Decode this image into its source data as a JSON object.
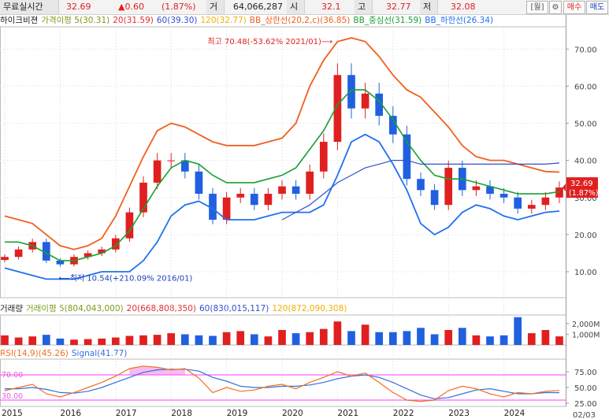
{
  "header": {
    "title": "무료실시간",
    "price": "32.69",
    "change": "▲0.60",
    "change_pct": "(1.87%)",
    "volume_label": "거",
    "volume": "64,066,287",
    "open_label": "시",
    "open": "32.1",
    "high_label": "고",
    "high": "32.77",
    "low_label": "저",
    "low": "32.08",
    "week_button": "[월]",
    "settings_icon": "gear-icon",
    "buy_button": "매수",
    "sell_button": "매도"
  },
  "colors": {
    "up": "#e02020",
    "down": "#2060e0",
    "ma5": "#7a9a1a",
    "ma20": "#e03030",
    "ma60": "#3050d0",
    "ma120": "#f0b000",
    "bb_upper": "#f06020",
    "bb_middle": "#18a030",
    "bb_lower": "#2070f0",
    "rsi": "#f07020",
    "signal": "#3070e0",
    "rsi_band": "#ff60ff"
  },
  "price_panel": {
    "legend": [
      {
        "text": "하이크비젼",
        "color": "#222222"
      },
      {
        "text": "가격이평 5(30.31)",
        "color": "#7a9a1a"
      },
      {
        "text": "20(31.59)",
        "color": "#e03030"
      },
      {
        "text": "60(39.30)",
        "color": "#3050d0"
      },
      {
        "text": "120(32.77)",
        "color": "#f0b000"
      },
      {
        "text": "BB_상한선(20,2,c)(36.85)",
        "color": "#f06020"
      },
      {
        "text": "BB_중심선(31.59)",
        "color": "#18a030"
      },
      {
        "text": "BB_하한선(26.34)",
        "color": "#2070f0"
      }
    ],
    "high_annotation": "최고 70.48(-53.62% 2021/01)⟶",
    "low_annotation": "⟵최저 10.54(+210.09% 2016/01)",
    "current_tag": {
      "price": "32.69",
      "pct": "(1.87%)"
    }
  },
  "volume_panel": {
    "legend": [
      {
        "text": "거래량",
        "color": "#222222"
      },
      {
        "text": "거래이평 5(804,043,000)",
        "color": "#7a9a1a"
      },
      {
        "text": "20(668,808,350)",
        "color": "#e03030"
      },
      {
        "text": "60(830,015,117)",
        "color": "#3050d0"
      },
      {
        "text": "120(872,090,308)",
        "color": "#f0b000"
      }
    ]
  },
  "rsi_panel": {
    "legend": [
      {
        "text": "RSI(14,9)(45.26)",
        "color": "#f07020"
      },
      {
        "text": "Signal(41.77)",
        "color": "#3070e0"
      }
    ],
    "upper_label": "70.00",
    "lower_label": "30.00"
  },
  "x_axis": {
    "labels": [
      "2015",
      "2016",
      "2017",
      "2018",
      "2019",
      "2020",
      "2021",
      "2022",
      "2023",
      "2024"
    ],
    "last_date": "02/03"
  },
  "chart_data": [
    {
      "type": "candlestick",
      "frequency": "monthly",
      "y_axis": {
        "ticks": [
          "10.00",
          "20.00",
          "30.00",
          "40.00",
          "50.00",
          "60.00",
          "70.00"
        ],
        "range": [
          3,
          76
        ]
      },
      "x": [
        "2015-01",
        "2015-04",
        "2015-07",
        "2015-10",
        "2016-01",
        "2016-04",
        "2016-07",
        "2016-10",
        "2017-01",
        "2017-04",
        "2017-07",
        "2017-10",
        "2018-01",
        "2018-04",
        "2018-07",
        "2018-10",
        "2019-01",
        "2019-04",
        "2019-07",
        "2019-10",
        "2020-01",
        "2020-04",
        "2020-07",
        "2020-10",
        "2021-01",
        "2021-04",
        "2021-07",
        "2021-10",
        "2022-01",
        "2022-04",
        "2022-07",
        "2022-10",
        "2023-01",
        "2023-04",
        "2023-07",
        "2023-10",
        "2024-01",
        "2024-04",
        "2024-07",
        "2024-10",
        "2025-01"
      ],
      "close": [
        14,
        16,
        18,
        13,
        12,
        14,
        15,
        16,
        19,
        26,
        34,
        40,
        40,
        37,
        31,
        24,
        30,
        31,
        28,
        31,
        33,
        31,
        37,
        45,
        63,
        54,
        58,
        52,
        47,
        35,
        32,
        28,
        38,
        32,
        33,
        31,
        30,
        27,
        28,
        30,
        32.69
      ],
      "bb_upper": [
        25,
        24,
        23,
        20,
        17,
        16,
        17,
        19,
        25,
        33,
        41,
        48,
        50,
        49,
        47,
        45,
        44,
        44,
        44,
        45,
        46,
        50,
        60,
        67,
        72,
        73,
        72,
        68,
        63,
        59,
        57,
        53,
        49,
        44,
        41,
        40,
        40,
        39,
        38,
        37,
        36.85
      ],
      "bb_middle": [
        18,
        18,
        17,
        15,
        13,
        13,
        14,
        15,
        17,
        21,
        27,
        33,
        38,
        40,
        39,
        36,
        34,
        34,
        34,
        35,
        36,
        38,
        43,
        48,
        55,
        59,
        59,
        56,
        51,
        45,
        40,
        36,
        35,
        35,
        34,
        33,
        32,
        31,
        31,
        31,
        31.59
      ],
      "bb_lower": [
        11,
        10,
        9,
        8,
        8,
        8,
        9,
        10,
        10,
        10,
        13,
        18,
        25,
        28,
        29,
        27,
        24,
        24,
        24,
        25,
        26,
        26,
        26,
        28,
        36,
        45,
        47,
        45,
        39,
        32,
        23,
        20,
        22,
        26,
        28,
        27,
        25,
        24,
        25,
        26,
        26.34
      ],
      "ma60": [
        null,
        null,
        null,
        null,
        null,
        null,
        null,
        null,
        null,
        null,
        null,
        null,
        null,
        null,
        null,
        null,
        null,
        null,
        null,
        null,
        24,
        26,
        28,
        31,
        34,
        36,
        38,
        39,
        40,
        40,
        39,
        39,
        39,
        39,
        39,
        39,
        39,
        39,
        39,
        39,
        39.3
      ],
      "annotations": [
        {
          "label": "최고",
          "value": 70.48,
          "date": "2021/01"
        },
        {
          "label": "최저",
          "value": 10.54,
          "date": "2016/01"
        }
      ]
    },
    {
      "type": "bar",
      "title": "거래량",
      "y_axis": {
        "ticks": [
          "1,000M",
          "2,000M"
        ],
        "range": [
          0,
          2800
        ]
      },
      "x": [
        "2015-01",
        "2015-04",
        "2015-07",
        "2015-10",
        "2016-01",
        "2016-04",
        "2016-07",
        "2016-10",
        "2017-01",
        "2017-04",
        "2017-07",
        "2017-10",
        "2018-01",
        "2018-04",
        "2018-07",
        "2018-10",
        "2019-01",
        "2019-04",
        "2019-07",
        "2019-10",
        "2020-01",
        "2020-04",
        "2020-07",
        "2020-10",
        "2021-01",
        "2021-04",
        "2021-07",
        "2021-10",
        "2022-01",
        "2022-04",
        "2022-07",
        "2022-10",
        "2023-01",
        "2023-04",
        "2023-07",
        "2023-10",
        "2024-01",
        "2024-04",
        "2024-07",
        "2024-10",
        "2025-01"
      ],
      "values": [
        900,
        700,
        800,
        950,
        600,
        500,
        550,
        600,
        700,
        850,
        900,
        950,
        1100,
        1000,
        900,
        850,
        1200,
        1300,
        1000,
        800,
        1400,
        1100,
        1200,
        1500,
        2200,
        1300,
        1900,
        1200,
        1200,
        1300,
        1600,
        1000,
        1400,
        1600,
        900,
        800,
        900,
        2600,
        1100,
        1400,
        804
      ],
      "series_names": [
        "거래이평 5",
        "20",
        "60",
        "120"
      ]
    },
    {
      "type": "line",
      "title": "RSI(14,9)",
      "y_axis": {
        "ticks": [
          "25.00",
          "50.00",
          "75.00"
        ],
        "range": [
          20,
          95
        ]
      },
      "x": [
        "2015-01",
        "2015-04",
        "2015-07",
        "2015-10",
        "2016-01",
        "2016-04",
        "2016-07",
        "2016-10",
        "2017-01",
        "2017-04",
        "2017-07",
        "2017-10",
        "2018-01",
        "2018-04",
        "2018-07",
        "2018-10",
        "2019-01",
        "2019-04",
        "2019-07",
        "2019-10",
        "2020-01",
        "2020-04",
        "2020-07",
        "2020-10",
        "2021-01",
        "2021-04",
        "2021-07",
        "2021-10",
        "2022-01",
        "2022-04",
        "2022-07",
        "2022-10",
        "2023-01",
        "2023-04",
        "2023-07",
        "2023-10",
        "2024-01",
        "2024-04",
        "2024-07",
        "2024-10",
        "2025-01"
      ],
      "series": [
        {
          "name": "RSI",
          "values": [
            45,
            50,
            55,
            40,
            35,
            42,
            50,
            58,
            68,
            80,
            84,
            82,
            78,
            80,
            65,
            42,
            50,
            44,
            46,
            52,
            55,
            48,
            58,
            66,
            75,
            68,
            73,
            58,
            42,
            30,
            28,
            30,
            45,
            52,
            48,
            40,
            35,
            42,
            40,
            44,
            45.26
          ]
        },
        {
          "name": "Signal",
          "values": [
            48,
            48,
            50,
            47,
            42,
            41,
            44,
            50,
            58,
            66,
            74,
            78,
            79,
            79,
            76,
            66,
            60,
            52,
            50,
            50,
            52,
            52,
            54,
            58,
            64,
            68,
            70,
            66,
            58,
            48,
            38,
            32,
            34,
            40,
            46,
            48,
            44,
            40,
            40,
            42,
            41.77
          ]
        }
      ],
      "bands": [
        30,
        70
      ]
    }
  ]
}
